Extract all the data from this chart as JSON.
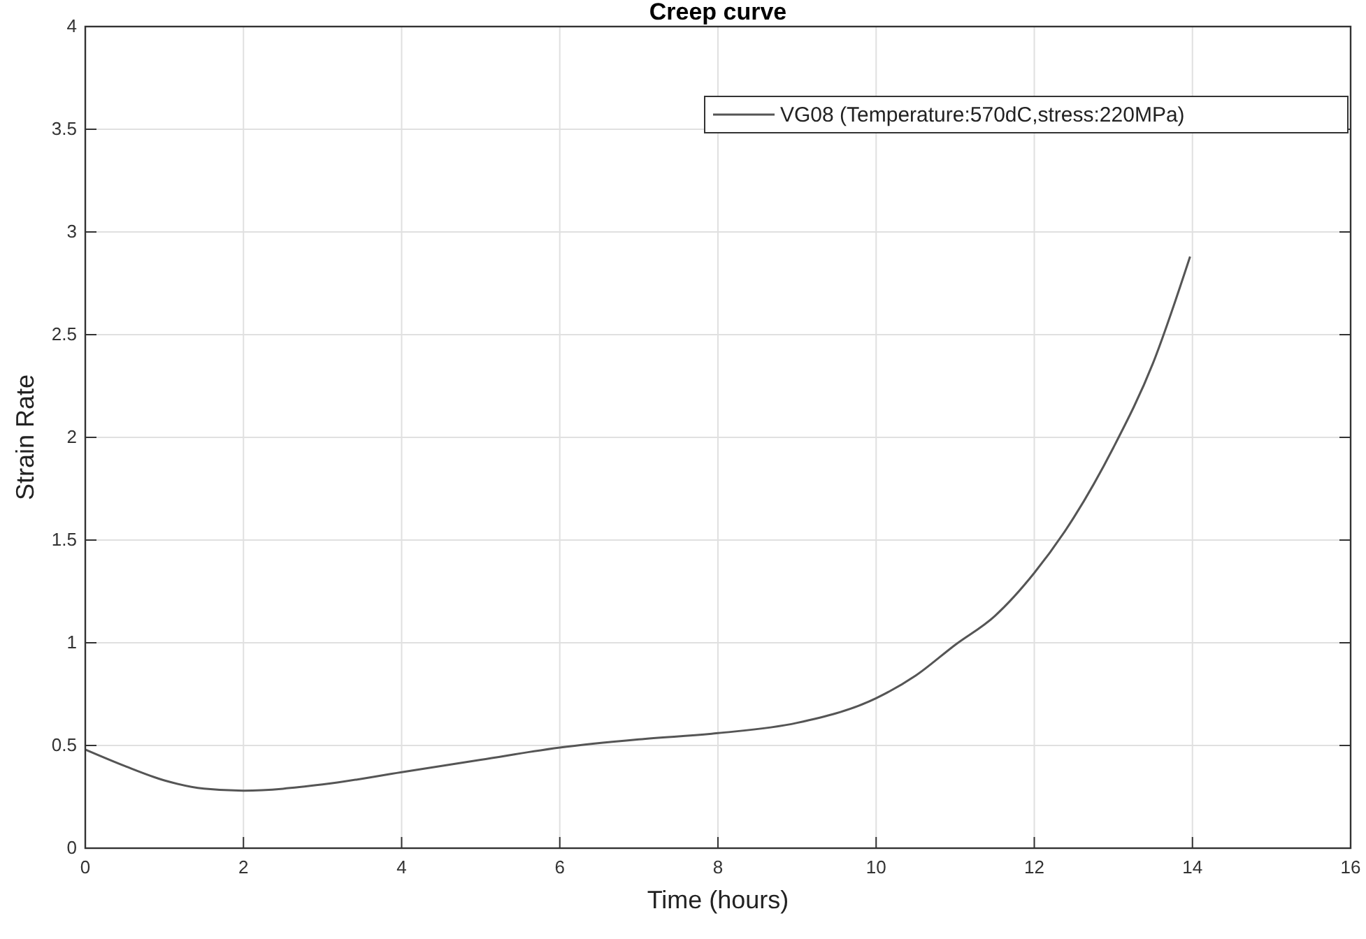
{
  "chart_data": {
    "type": "line",
    "title": "Creep curve",
    "xlabel": "Time (hours)",
    "ylabel": "Strain Rate",
    "xlim": [
      0,
      16
    ],
    "xticks": [
      0,
      2,
      4,
      6,
      8,
      10,
      12,
      14,
      16
    ],
    "ylim": [
      0,
      4
    ],
    "yticks": [
      0,
      0.5,
      1,
      1.5,
      2,
      2.5,
      3,
      3.5,
      4
    ],
    "grid": true,
    "legend": "top right",
    "series": [
      {
        "name": "VG08 (Temperature:570dC,stress:220MPa)",
        "color": "#555555",
        "x": [
          0,
          0.5,
          1,
          1.5,
          2,
          3,
          4,
          5,
          6,
          7,
          8,
          9,
          10,
          10.5,
          11,
          11.5,
          12,
          12.5,
          13,
          13.5,
          13.97
        ],
        "values": [
          0.48,
          0.4,
          0.33,
          0.29,
          0.28,
          0.31,
          0.37,
          0.43,
          0.49,
          0.53,
          0.56,
          0.61,
          0.73,
          0.84,
          0.99,
          1.13,
          1.34,
          1.61,
          1.95,
          2.36,
          2.88
        ]
      }
    ]
  }
}
